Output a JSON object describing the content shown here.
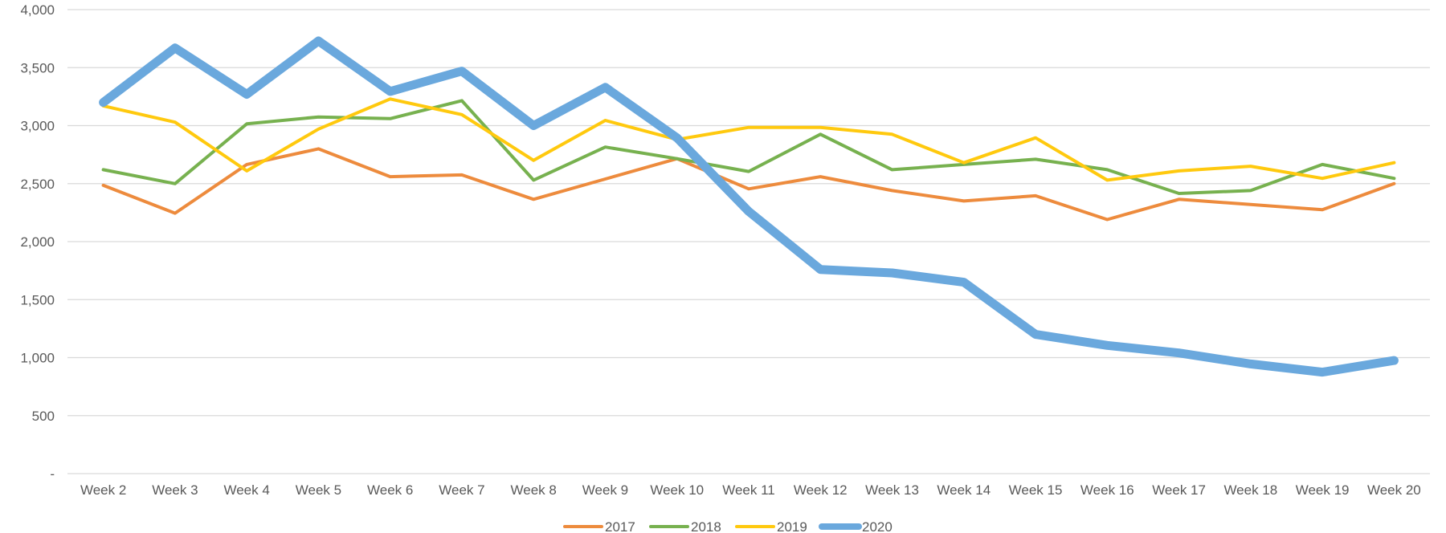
{
  "chart_data": {
    "type": "line",
    "title": "",
    "xlabel": "",
    "ylabel": "",
    "categories": [
      "Week 2",
      "Week 3",
      "Week 4",
      "Week 5",
      "Week 6",
      "Week 7",
      "Week 8",
      "Week 9",
      "Week 10",
      "Week 11",
      "Week 12",
      "Week 13",
      "Week 14",
      "Week 15",
      "Week 16",
      "Week 17",
      "Week 18",
      "Week 19",
      "Week 20"
    ],
    "ylim": [
      0,
      4000
    ],
    "yticks": [
      0,
      500,
      1000,
      1500,
      2000,
      2500,
      3000,
      3500,
      4000
    ],
    "ytick_labels": [
      "-",
      "500",
      "1,000",
      "1,500",
      "2,000",
      "2,500",
      "3,000",
      "3,500",
      "4,000"
    ],
    "grid": "horizontal",
    "legend_position": "bottom",
    "series": [
      {
        "name": "2017",
        "color": "#ed8b3d",
        "values": [
          2485,
          2245,
          2665,
          2800,
          2560,
          2575,
          2365,
          2540,
          2715,
          2455,
          2560,
          2440,
          2350,
          2395,
          2190,
          2365,
          2320,
          2275,
          2500
        ]
      },
      {
        "name": "2018",
        "color": "#77b14f",
        "values": [
          2620,
          2500,
          3015,
          3075,
          3060,
          3215,
          2530,
          2815,
          2715,
          2605,
          2925,
          2620,
          2665,
          2710,
          2620,
          2415,
          2440,
          2665,
          2545
        ]
      },
      {
        "name": "2019",
        "color": "#ffc90e",
        "values": [
          3170,
          3030,
          2610,
          2970,
          3230,
          3095,
          2700,
          3045,
          2880,
          2985,
          2985,
          2925,
          2680,
          2895,
          2530,
          2610,
          2650,
          2545,
          2680
        ]
      },
      {
        "name": "2020",
        "color": "#6aa8dd",
        "values": [
          3200,
          3670,
          3270,
          3730,
          3295,
          3470,
          3000,
          3330,
          2895,
          2260,
          1760,
          1730,
          1650,
          1200,
          1105,
          1040,
          945,
          875,
          975
        ]
      }
    ]
  }
}
